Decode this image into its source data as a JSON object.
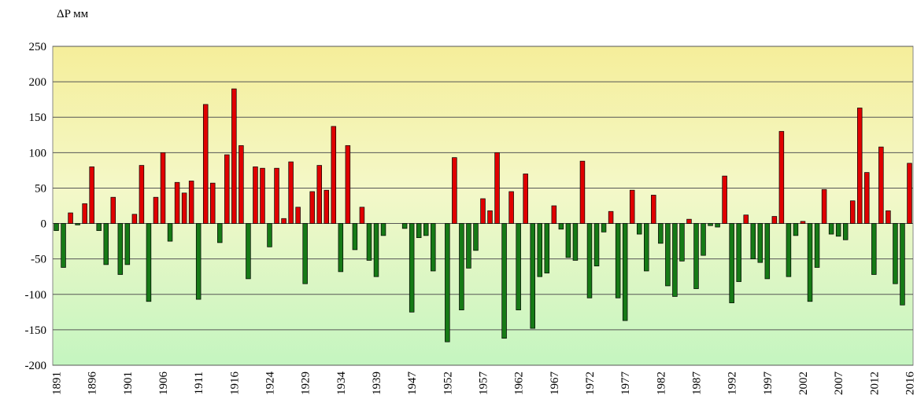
{
  "chart_data": {
    "type": "bar",
    "y_label": "ΔP мм",
    "categories": [
      "1891",
      null,
      null,
      null,
      null,
      "1896",
      null,
      null,
      null,
      null,
      "1901",
      null,
      null,
      null,
      null,
      "1906",
      null,
      null,
      null,
      null,
      "1911",
      null,
      null,
      null,
      null,
      "1916",
      null,
      null,
      null,
      null,
      "1924",
      null,
      null,
      null,
      null,
      "1929",
      null,
      null,
      null,
      null,
      "1934",
      null,
      null,
      null,
      null,
      "1939",
      null,
      null,
      null,
      null,
      "1947",
      null,
      null,
      null,
      null,
      "1952",
      null,
      null,
      null,
      null,
      "1957",
      null,
      null,
      null,
      null,
      "1962",
      null,
      null,
      null,
      null,
      "1967",
      null,
      null,
      null,
      null,
      "1972",
      null,
      null,
      null,
      null,
      "1977",
      null,
      null,
      null,
      null,
      "1982",
      null,
      null,
      null,
      null,
      "1987",
      null,
      null,
      null,
      null,
      "1992",
      null,
      null,
      null,
      null,
      "1997",
      null,
      null,
      null,
      null,
      "2002",
      null,
      null,
      null,
      null,
      "2007",
      null,
      null,
      null,
      null,
      "2012",
      null,
      null,
      null,
      null,
      "2016"
    ],
    "values": [
      -10,
      -62,
      15,
      -2,
      28,
      80,
      -10,
      -58,
      37,
      -72,
      -58,
      13,
      82,
      -110,
      37,
      100,
      -25,
      58,
      43,
      60,
      -107,
      168,
      57,
      -27,
      97,
      190,
      110,
      -78,
      80,
      78,
      -33,
      78,
      7,
      87,
      23,
      -85,
      45,
      82,
      47,
      137,
      -68,
      110,
      -37,
      23,
      -52,
      -75,
      -17,
      0,
      0,
      -7,
      -125,
      -20,
      -17,
      -67,
      0,
      -167,
      93,
      -122,
      -63,
      -38,
      35,
      18,
      100,
      -162,
      45,
      -122,
      70,
      -148,
      -75,
      -70,
      25,
      -8,
      -48,
      -52,
      88,
      -105,
      -60,
      -12,
      17,
      -105,
      -137,
      47,
      -15,
      -67,
      40,
      -28,
      -88,
      -103,
      -53,
      6,
      -92,
      -45,
      -3,
      -5,
      67,
      -112,
      -82,
      12,
      -50,
      -55,
      -78,
      10,
      130,
      -75,
      -17,
      3,
      -110,
      -62,
      48,
      -15,
      -18,
      -23,
      32,
      163,
      72,
      -72,
      108,
      18,
      -85,
      -115,
      85
    ],
    "positive_color": "#e00000",
    "negative_color": "#167a16",
    "ylim": [
      -200,
      250
    ],
    "yticks": [
      -200,
      -150,
      -100,
      -50,
      0,
      50,
      100,
      150,
      200,
      250
    ],
    "grid": true
  }
}
